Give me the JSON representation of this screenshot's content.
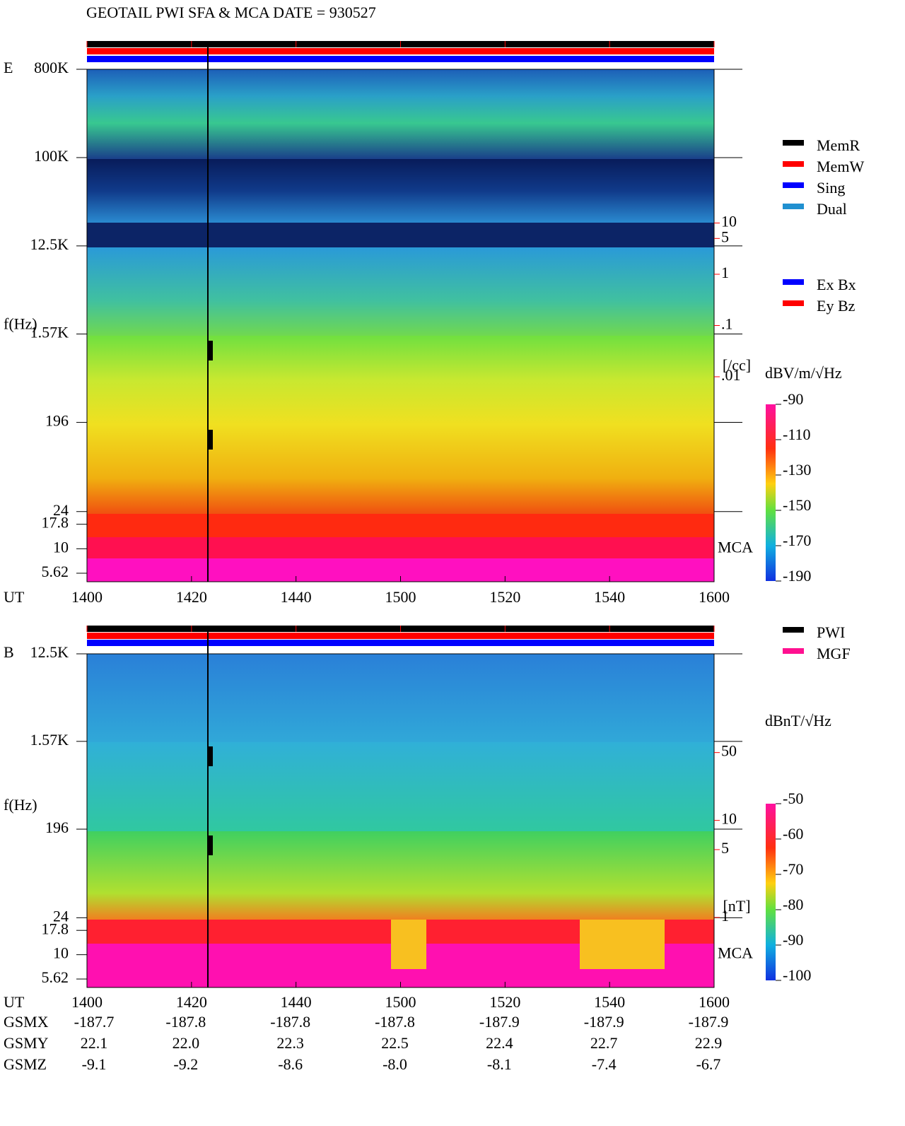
{
  "chart_data": [
    {
      "type": "spectrogram",
      "title": "GEOTAIL  PWI SFA & MCA   DATE = 930527",
      "panel_label": "E",
      "ylabel": "f(Hz)",
      "xlabel": "UT",
      "log_y": true,
      "ylim": [
        4.6,
        800000
      ],
      "yticks": [
        {
          "value": 800000,
          "label": "800K"
        },
        {
          "value": 100000,
          "label": "100K"
        },
        {
          "value": 12500,
          "label": "12.5K"
        },
        {
          "value": 1570,
          "label": "1.57K"
        },
        196,
        24,
        17.8,
        10,
        5.62
      ],
      "x_categories": [
        "1400",
        "1420",
        "1440",
        "1500",
        "1520",
        "1540",
        "1600"
      ],
      "y2label": "[/cc]",
      "y2lim": [
        1e-06,
        10000
      ],
      "y2color": "#ff0000",
      "y2ticks": [
        10,
        5,
        1,
        {
          "value": 0.1,
          "label": ".1"
        },
        {
          "value": 0.01,
          "label": ".01"
        }
      ],
      "mca_label": "MCA",
      "colorbar": {
        "label": "dBV/m/√Hz",
        "clim": [
          -190,
          -90
        ],
        "cticks": [
          -90,
          -110,
          -130,
          -150,
          -170,
          -190
        ]
      },
      "legend": [
        {
          "name": "MemR",
          "color": "#000000"
        },
        {
          "name": "MemW",
          "color": "#ff0000"
        },
        {
          "name": "Sing",
          "color": "#0000ff"
        },
        {
          "name": "Dual",
          "color": "#2090d0"
        }
      ],
      "legend2": [
        {
          "name": "Ex Bx",
          "color": "#0000ff"
        },
        {
          "name": "Ey Bz",
          "color": "#ff0000"
        }
      ]
    },
    {
      "type": "spectrogram",
      "panel_label": "B",
      "ylabel": "f(Hz)",
      "xlabel": "UT",
      "log_y": true,
      "ylim": [
        4.6,
        12500
      ],
      "yticks": [
        {
          "value": 12500,
          "label": "12.5K"
        },
        {
          "value": 1570,
          "label": "1.57K"
        },
        196,
        24,
        17.8,
        10,
        5.62
      ],
      "x_categories": [
        "1400",
        "1420",
        "1440",
        "1500",
        "1520",
        "1540",
        "1600"
      ],
      "y2label": "[nT]",
      "y2lim": [
        0.19,
        520
      ],
      "y2color": "#ff0000",
      "y2ticks": [
        50,
        10,
        5,
        1
      ],
      "mca_label": "MCA",
      "colorbar": {
        "label": "dBnT/√Hz",
        "clim": [
          -100,
          -50
        ],
        "cticks": [
          -50,
          -60,
          -70,
          -80,
          -90,
          -100
        ]
      },
      "legend": [
        {
          "name": "PWI",
          "color": "#000000"
        },
        {
          "name": "MGF",
          "color": "#ff1090"
        }
      ]
    }
  ],
  "orbit": {
    "rows": [
      {
        "name": "GSMX",
        "values": [
          "-187.7",
          "-187.8",
          "-187.8",
          "-187.8",
          "-187.9",
          "-187.9",
          "-187.9"
        ]
      },
      {
        "name": "GSMY",
        "values": [
          "22.1",
          "22.0",
          "22.3",
          "22.5",
          "22.4",
          "22.7",
          "22.9"
        ]
      },
      {
        "name": "GSMZ",
        "values": [
          "-9.1",
          "-9.2",
          "-8.6",
          "-8.0",
          "-8.1",
          "-7.4",
          "-6.7"
        ]
      }
    ]
  }
}
